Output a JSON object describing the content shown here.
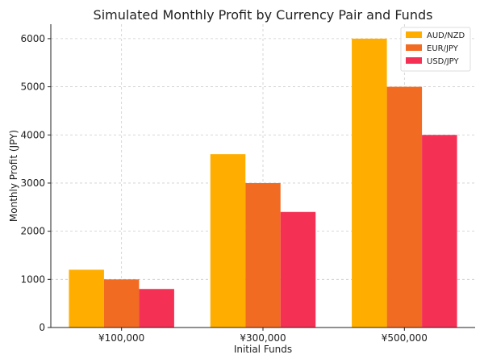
{
  "chart_data": {
    "type": "bar",
    "title": "Simulated Monthly Profit by Currency Pair and Funds",
    "xlabel": "Initial Funds",
    "ylabel": "Monthly Profit (JPY)",
    "categories": [
      "¥100,000",
      "¥300,000",
      "¥500,000"
    ],
    "series": [
      {
        "name": "AUD/NZD",
        "color": "#ffae00",
        "values": [
          1200,
          3600,
          6000
        ]
      },
      {
        "name": "EUR/JPY",
        "color": "#f26b22",
        "values": [
          1000,
          3000,
          5000
        ]
      },
      {
        "name": "USD/JPY",
        "color": "#f43054",
        "values": [
          800,
          2400,
          4000
        ]
      }
    ],
    "ylim": [
      0,
      6300
    ],
    "yticks": [
      0,
      1000,
      2000,
      3000,
      4000,
      5000,
      6000
    ],
    "grid": true,
    "legend_position": "top-right"
  }
}
